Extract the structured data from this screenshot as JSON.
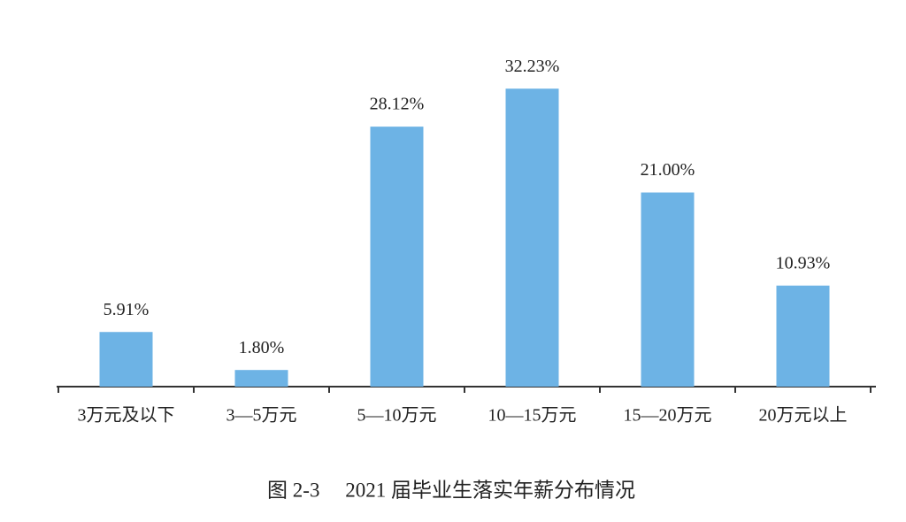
{
  "chart_data": {
    "type": "bar",
    "title": "图 2-3　 2021 届毕业生落实年薪分布情况",
    "categories": [
      "3万元及以下",
      "3—5万元",
      "5—10万元",
      "10—15万元",
      "15—20万元",
      "20万元以上"
    ],
    "values": [
      5.91,
      1.8,
      28.12,
      32.23,
      21.0,
      10.93
    ],
    "value_labels": [
      "5.91%",
      "1.80%",
      "28.12%",
      "32.23%",
      "21.00%",
      "10.93%"
    ],
    "color": "#6db3e5"
  }
}
